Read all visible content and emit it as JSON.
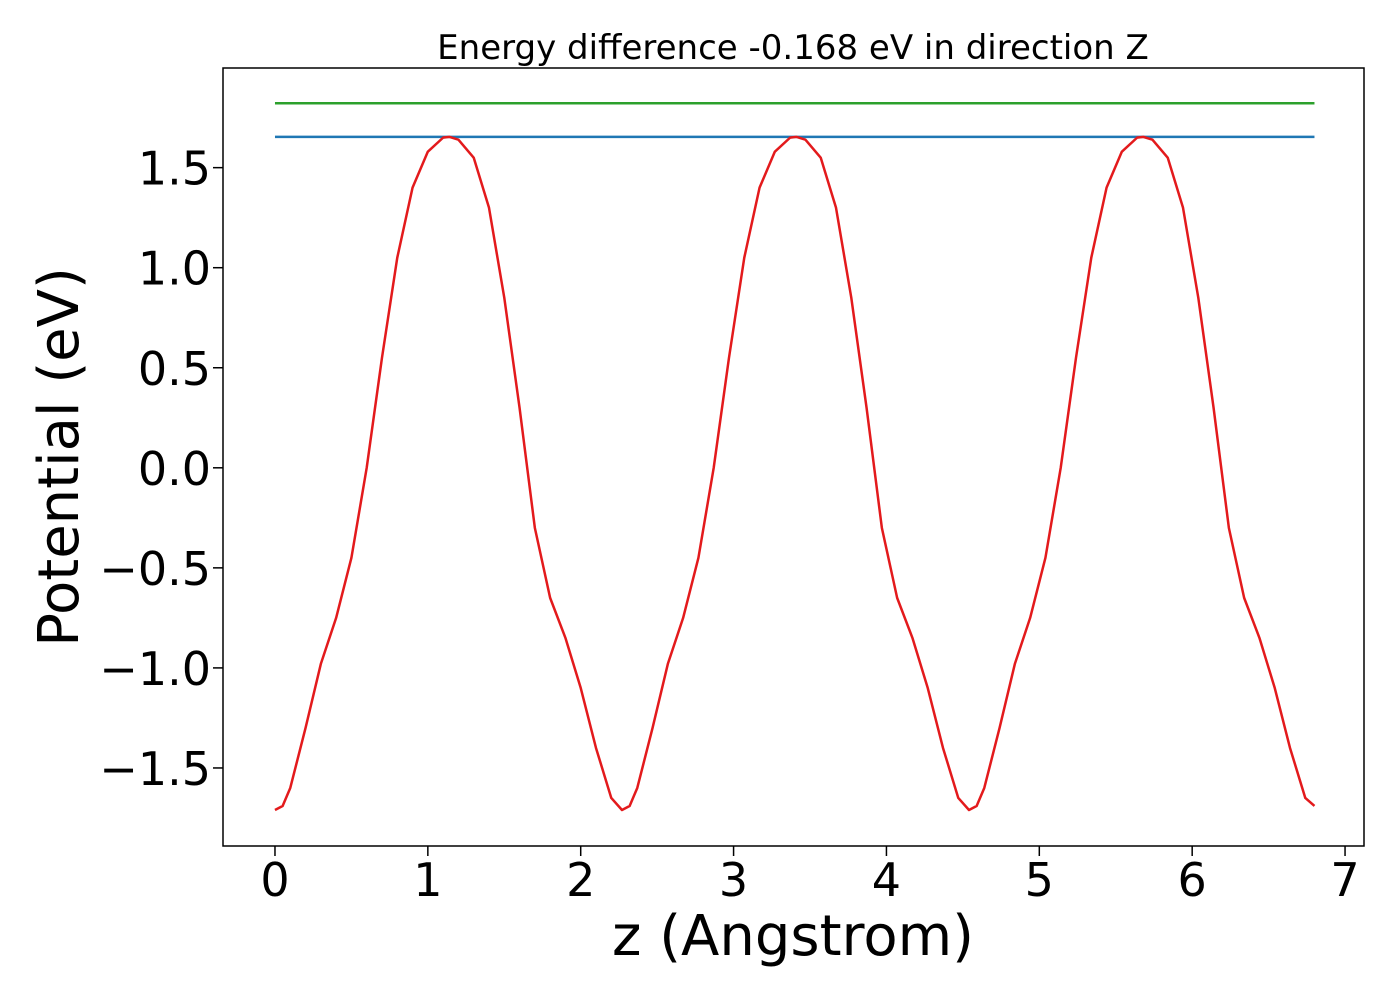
{
  "chart_data": {
    "type": "line",
    "title": "Energy difference -0.168 eV in direction Z",
    "x_label": "z (Angstrom)",
    "y_label": "Potential (eV)",
    "xlim": [
      -0.34,
      7.124
    ],
    "ylim": [
      -1.89,
      1.998
    ],
    "xticks": [
      0,
      1,
      2,
      3,
      4,
      5,
      6,
      7
    ],
    "yticks": [
      {
        "value": -1.5,
        "label": "−1.5"
      },
      {
        "value": -1.0,
        "label": "−1.0"
      },
      {
        "value": -0.5,
        "label": "−0.5"
      },
      {
        "value": 0.0,
        "label": "0.0"
      },
      {
        "value": 0.5,
        "label": "0.5"
      },
      {
        "value": 1.0,
        "label": "1.0"
      },
      {
        "value": 1.5,
        "label": "1.5"
      }
    ],
    "grid": false,
    "series": [
      {
        "color": "#2ca02c",
        "x": [
          0,
          6.8
        ],
        "values": [
          1.822,
          1.822
        ]
      },
      {
        "color": "#1f77b4",
        "x": [
          0,
          6.8
        ],
        "values": [
          1.654,
          1.654
        ]
      },
      {
        "color": "#e31a1c",
        "x": [
          0,
          0.05,
          0.1,
          0.2,
          0.3,
          0.4,
          0.5,
          0.6,
          0.7,
          0.8,
          0.9,
          1.0,
          1.1,
          1.14,
          1.2,
          1.3,
          1.4,
          1.5,
          1.6,
          1.7,
          1.8,
          1.9,
          2.0,
          2.1,
          2.2,
          2.27,
          2.32,
          2.37,
          2.47,
          2.57,
          2.67,
          2.77,
          2.87,
          2.97,
          3.07,
          3.17,
          3.27,
          3.37,
          3.41,
          3.47,
          3.57,
          3.67,
          3.77,
          3.87,
          3.97,
          4.07,
          4.17,
          4.27,
          4.37,
          4.47,
          4.54,
          4.59,
          4.64,
          4.74,
          4.84,
          4.94,
          5.04,
          5.14,
          5.24,
          5.34,
          5.44,
          5.54,
          5.64,
          5.68,
          5.74,
          5.84,
          5.94,
          6.04,
          6.14,
          6.24,
          6.34,
          6.44,
          6.54,
          6.64,
          6.74,
          6.8
        ],
        "values": [
          -1.71,
          -1.69,
          -1.6,
          -1.3,
          -0.98,
          -0.75,
          -0.45,
          0.0,
          0.55,
          1.05,
          1.4,
          1.58,
          1.65,
          1.654,
          1.64,
          1.55,
          1.3,
          0.85,
          0.3,
          -0.3,
          -0.65,
          -0.85,
          -1.1,
          -1.4,
          -1.65,
          -1.71,
          -1.69,
          -1.6,
          -1.3,
          -0.98,
          -0.75,
          -0.45,
          0.0,
          0.55,
          1.05,
          1.4,
          1.58,
          1.65,
          1.654,
          1.64,
          1.55,
          1.3,
          0.85,
          0.3,
          -0.3,
          -0.65,
          -0.85,
          -1.1,
          -1.4,
          -1.65,
          -1.71,
          -1.69,
          -1.6,
          -1.3,
          -0.98,
          -0.75,
          -0.45,
          0.0,
          0.55,
          1.05,
          1.4,
          1.58,
          1.65,
          1.654,
          1.64,
          1.55,
          1.3,
          0.85,
          0.3,
          -0.3,
          -0.65,
          -0.85,
          -1.1,
          -1.4,
          -1.65,
          -1.69
        ]
      }
    ]
  }
}
